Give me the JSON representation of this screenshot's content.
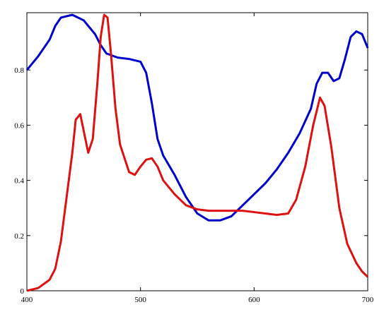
{
  "chart_data": {
    "type": "line",
    "xlim": [
      400,
      700
    ],
    "ylim": [
      0,
      1.0
    ],
    "xticks": [
      400,
      500,
      600,
      700
    ],
    "yticks": [
      0,
      0.2,
      0.4,
      0.6,
      0.8
    ],
    "grid": false,
    "series": [
      {
        "color": "#0000cc",
        "x": [
          400,
          410,
          420,
          425,
          430,
          440,
          450,
          460,
          465,
          470,
          480,
          490,
          500,
          505,
          510,
          515,
          520,
          530,
          540,
          550,
          560,
          570,
          580,
          590,
          600,
          610,
          620,
          630,
          640,
          650,
          655,
          660,
          665,
          670,
          675,
          680,
          685,
          690,
          695,
          700
        ],
        "values": [
          0.8,
          0.85,
          0.91,
          0.96,
          0.99,
          1.0,
          0.98,
          0.93,
          0.89,
          0.86,
          0.845,
          0.84,
          0.83,
          0.79,
          0.68,
          0.55,
          0.49,
          0.42,
          0.34,
          0.28,
          0.255,
          0.255,
          0.27,
          0.31,
          0.35,
          0.39,
          0.44,
          0.5,
          0.57,
          0.66,
          0.75,
          0.79,
          0.79,
          0.76,
          0.77,
          0.84,
          0.92,
          0.94,
          0.93,
          0.88
        ]
      },
      {
        "color": "#dd1111",
        "x": [
          400,
          410,
          420,
          425,
          430,
          435,
          440,
          443,
          447,
          450,
          454,
          458,
          462,
          465,
          468,
          471,
          474,
          478,
          482,
          490,
          495,
          500,
          505,
          510,
          515,
          520,
          530,
          540,
          550,
          560,
          570,
          580,
          590,
          600,
          610,
          620,
          630,
          637,
          645,
          652,
          658,
          662,
          668,
          675,
          682,
          690,
          695,
          700
        ],
        "values": [
          0.0,
          0.01,
          0.04,
          0.08,
          0.18,
          0.34,
          0.5,
          0.62,
          0.64,
          0.58,
          0.5,
          0.55,
          0.75,
          0.92,
          1.0,
          0.99,
          0.86,
          0.66,
          0.53,
          0.43,
          0.42,
          0.45,
          0.475,
          0.48,
          0.45,
          0.4,
          0.35,
          0.31,
          0.295,
          0.29,
          0.29,
          0.29,
          0.29,
          0.285,
          0.28,
          0.275,
          0.28,
          0.33,
          0.45,
          0.6,
          0.7,
          0.67,
          0.52,
          0.3,
          0.17,
          0.1,
          0.07,
          0.05
        ]
      }
    ]
  }
}
